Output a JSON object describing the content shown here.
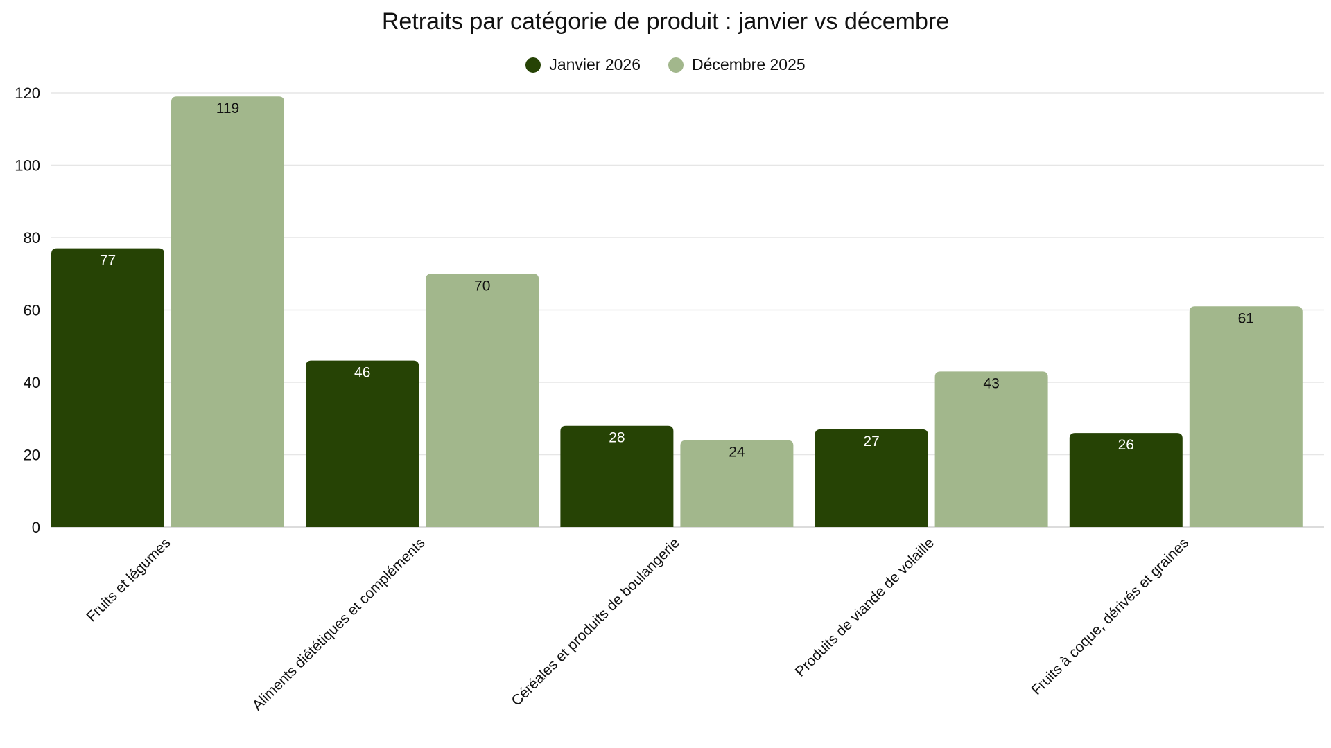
{
  "chart_data": {
    "type": "bar",
    "title": "Retraits par catégorie de produit : janvier vs décembre",
    "categories": [
      "Fruits et légumes",
      "Aliments diététiques et compléments",
      "Céréales et produits de boulangerie",
      "Produits de viande de volaille",
      "Fruits à coque, dérivés et graines"
    ],
    "series": [
      {
        "name": "Janvier 2026",
        "color": "#264305",
        "label_color": "#ffffff",
        "values": [
          77,
          46,
          28,
          27,
          26
        ]
      },
      {
        "name": "Décembre 2025",
        "color": "#a2b78c",
        "label_color": "#111111",
        "values": [
          119,
          70,
          24,
          43,
          61
        ]
      }
    ],
    "yticks": [
      0,
      20,
      40,
      60,
      80,
      100,
      120
    ],
    "ylim": [
      0,
      120
    ],
    "grid": true,
    "legend_position": "top-center"
  }
}
